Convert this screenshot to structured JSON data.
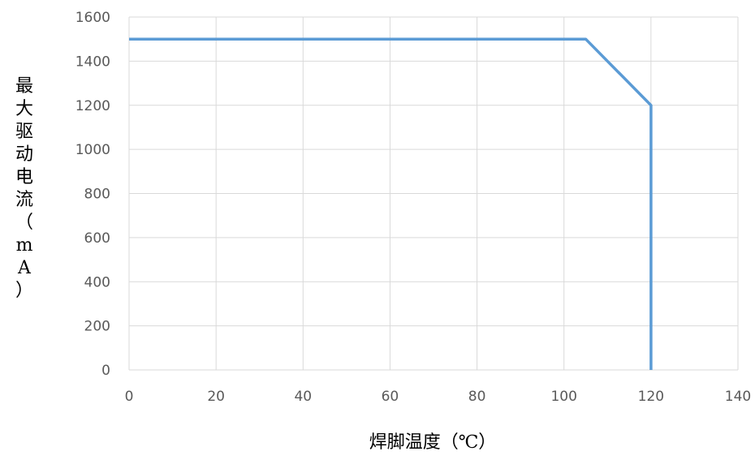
{
  "chart_data": {
    "type": "line",
    "title": "",
    "xlabel": "焊脚温度（℃）",
    "ylabel": "最大驱动电流（mA）",
    "xlim": [
      0,
      140
    ],
    "ylim": [
      0,
      1600
    ],
    "x_ticks": [
      0,
      20,
      40,
      60,
      80,
      100,
      120,
      140
    ],
    "y_ticks": [
      0,
      200,
      400,
      600,
      800,
      1000,
      1200,
      1400,
      1600
    ],
    "grid": true,
    "legend": "none",
    "series": [
      {
        "color": "#5B9BD5",
        "x": [
          0,
          105,
          120,
          120
        ],
        "y": [
          1500,
          1500,
          1200,
          0
        ]
      }
    ]
  }
}
